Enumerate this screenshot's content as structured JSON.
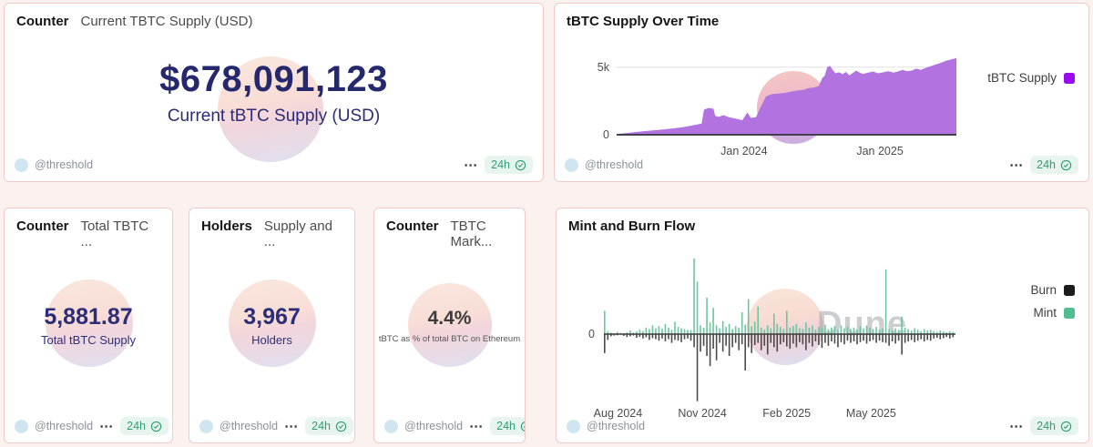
{
  "footer_common": {
    "author": "@threshold",
    "more_icon": "⋯",
    "range_label": "24h"
  },
  "watermark": {
    "brand": "Dune"
  },
  "cards": {
    "usd_counter": {
      "type_label": "Counter",
      "title": "Current TBTC Supply (USD)",
      "value": "$678,091,123",
      "subtitle": "Current tBTC Supply (USD)"
    },
    "supply_chart": {
      "title": "tBTC Supply Over Time",
      "legend": "tBTC Supply"
    },
    "total_counter": {
      "type_label": "Counter",
      "title": "Total TBTC ...",
      "value": "5,881.87",
      "subtitle": "Total tBTC Supply"
    },
    "holders_counter": {
      "type_label": "Holders",
      "title": "Supply and ...",
      "value": "3,967",
      "subtitle": "Holders"
    },
    "market_counter": {
      "type_label": "Counter",
      "title": "TBTC Mark...",
      "value": "4.4%",
      "subtitle": "tBTC as % of total BTC on Ethereum"
    },
    "flow_chart": {
      "title": "Mint and Burn Flow",
      "legend_burn": "Burn",
      "legend_mint": "Mint"
    }
  },
  "colors": {
    "area_purple": "#b273e1",
    "legend_purple": "#9a0bf2",
    "mint_green": "#6cc6a1",
    "mint_legend": "#4fbf92",
    "burn_gray": "#4a4a4a",
    "burn_legend": "#1c1c1c",
    "badge_green": "#2f9e77",
    "card_border": "#f1cac8",
    "value_navy": "#26286e"
  },
  "chart_data": [
    {
      "type": "area",
      "title": "tBTC Supply Over Time",
      "series_name": "tBTC Supply",
      "color": "#b273e1",
      "legend_color": "#9a0bf2",
      "ylim": [
        0,
        6200
      ],
      "yticks": [
        {
          "label": "5k",
          "v": 5000
        },
        {
          "label": "0",
          "v": 0
        }
      ],
      "xticks": [
        {
          "label": "Jan 2024",
          "f": 0.375
        },
        {
          "label": "Jan 2025",
          "f": 0.775
        }
      ],
      "points": [
        [
          0,
          60
        ],
        [
          0.02,
          100
        ],
        [
          0.05,
          180
        ],
        [
          0.08,
          260
        ],
        [
          0.11,
          330
        ],
        [
          0.14,
          400
        ],
        [
          0.17,
          480
        ],
        [
          0.2,
          580
        ],
        [
          0.23,
          720
        ],
        [
          0.25,
          820
        ],
        [
          0.257,
          1850
        ],
        [
          0.27,
          1980
        ],
        [
          0.285,
          1930
        ],
        [
          0.29,
          1400
        ],
        [
          0.3,
          1320
        ],
        [
          0.315,
          1450
        ],
        [
          0.33,
          1300
        ],
        [
          0.35,
          1200
        ],
        [
          0.37,
          1080
        ],
        [
          0.385,
          1650
        ],
        [
          0.395,
          1250
        ],
        [
          0.41,
          1300
        ],
        [
          0.425,
          2100
        ],
        [
          0.44,
          2850
        ],
        [
          0.455,
          3000
        ],
        [
          0.475,
          3050
        ],
        [
          0.495,
          3100
        ],
        [
          0.515,
          3200
        ],
        [
          0.535,
          3280
        ],
        [
          0.55,
          3320
        ],
        [
          0.565,
          3450
        ],
        [
          0.58,
          3500
        ],
        [
          0.595,
          3600
        ],
        [
          0.605,
          4200
        ],
        [
          0.612,
          4350
        ],
        [
          0.62,
          5000
        ],
        [
          0.628,
          5100
        ],
        [
          0.636,
          4800
        ],
        [
          0.644,
          4550
        ],
        [
          0.655,
          4620
        ],
        [
          0.665,
          4480
        ],
        [
          0.675,
          4650
        ],
        [
          0.685,
          4400
        ],
        [
          0.695,
          4560
        ],
        [
          0.705,
          4750
        ],
        [
          0.715,
          4600
        ],
        [
          0.725,
          4500
        ],
        [
          0.74,
          4600
        ],
        [
          0.755,
          4680
        ],
        [
          0.77,
          4550
        ],
        [
          0.785,
          4620
        ],
        [
          0.8,
          4700
        ],
        [
          0.815,
          4600
        ],
        [
          0.83,
          4700
        ],
        [
          0.842,
          4800
        ],
        [
          0.855,
          4700
        ],
        [
          0.87,
          4760
        ],
        [
          0.882,
          4900
        ],
        [
          0.895,
          4800
        ],
        [
          0.91,
          4950
        ],
        [
          0.925,
          5080
        ],
        [
          0.94,
          5200
        ],
        [
          0.955,
          5330
        ],
        [
          0.97,
          5480
        ],
        [
          0.985,
          5580
        ],
        [
          1,
          5680
        ]
      ]
    },
    {
      "type": "bar",
      "title": "Mint and Burn Flow",
      "ylim": [
        -500,
        550
      ],
      "yticks": [
        {
          "label": "0",
          "v": 0
        }
      ],
      "xticks": [
        {
          "label": "Aug 2024",
          "f": 0.04
        },
        {
          "label": "Nov 2024",
          "f": 0.28
        },
        {
          "label": "Feb 2025",
          "f": 0.52
        },
        {
          "label": "May 2025",
          "f": 0.76
        }
      ],
      "series": [
        {
          "name": "Mint",
          "color": "#6cc6a1",
          "legend_color": "#4fbf92",
          "values": [
            160,
            20,
            10,
            0,
            15,
            8,
            0,
            12,
            25,
            10,
            18,
            30,
            22,
            45,
            35,
            60,
            40,
            55,
            38,
            70,
            45,
            30,
            85,
            50,
            40,
            35,
            28,
            28,
            520,
            360,
            60,
            45,
            250,
            80,
            180,
            60,
            40,
            90,
            50,
            70,
            35,
            55,
            45,
            150,
            65,
            240,
            55,
            85,
            190,
            45,
            30,
            60,
            40,
            140,
            70,
            50,
            35,
            160,
            45,
            55,
            70,
            40,
            35,
            80,
            45,
            60,
            30,
            50,
            40,
            65,
            35,
            45,
            55,
            30,
            60,
            40,
            50,
            35,
            45,
            30,
            55,
            40,
            60,
            45,
            35,
            50,
            30,
            40,
            445,
            35,
            25,
            40,
            30,
            120,
            45,
            35,
            25,
            40,
            30,
            20,
            35,
            25,
            30,
            20,
            15,
            25,
            18,
            12,
            20,
            15
          ]
        },
        {
          "name": "Burn",
          "color": "#4a4a4a",
          "legend_color": "#1c1c1c",
          "values": [
            -130,
            -40,
            -15,
            -10,
            -8,
            0,
            -12,
            -20,
            -15,
            -10,
            -25,
            -18,
            -30,
            -22,
            -40,
            -28,
            -35,
            -45,
            -30,
            -50,
            -35,
            -60,
            -40,
            -45,
            -55,
            -35,
            -30,
            -45,
            -90,
            -460,
            -120,
            -80,
            -150,
            -220,
            -100,
            -180,
            -60,
            -120,
            -80,
            -150,
            -90,
            -60,
            -110,
            -70,
            -250,
            -90,
            -130,
            -75,
            -60,
            -110,
            -80,
            -140,
            -60,
            -90,
            -120,
            -70,
            -55,
            -85,
            -100,
            -65,
            -90,
            -55,
            -70,
            -110,
            -60,
            -85,
            -50,
            -75,
            -95,
            -60,
            -80,
            -50,
            -65,
            -90,
            -55,
            -70,
            -45,
            -60,
            -50,
            -70,
            -55,
            -45,
            -65,
            -50,
            -40,
            -60,
            -45,
            -55,
            -60,
            -80,
            -50,
            -65,
            -45,
            -140,
            -60,
            -50,
            -40,
            -55,
            -45,
            -35,
            -50,
            -40,
            -45,
            -30,
            -25,
            -35,
            -28,
            -20,
            -30,
            -22
          ]
        }
      ]
    }
  ]
}
